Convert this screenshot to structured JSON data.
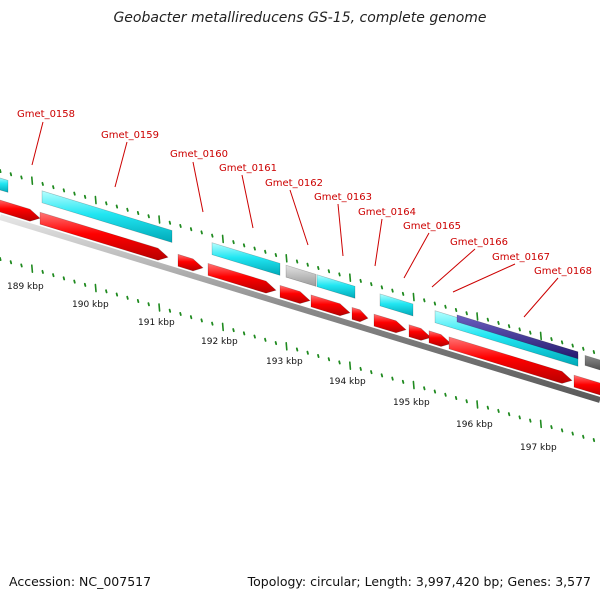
{
  "title": "Geobacter metallireducens GS-15, complete genome",
  "footer": {
    "accession": "Accession: NC_007517",
    "summary": "Topology: circular; Length: 3,997,420 bp; Genes: 3,577"
  },
  "colors": {
    "forward_cds": "#00ffff",
    "reverse_cds": "#ff0000",
    "other_feature": "#bfbfbf",
    "dark_feature": "#3a2d8c",
    "label_text": "#cc0000",
    "tick": "#1f8a1f",
    "backbone": "#808080"
  },
  "gene_labels": [
    "Gmet_0158",
    "Gmet_0159",
    "Gmet_0160",
    "Gmet_0161",
    "Gmet_0162",
    "Gmet_0163",
    "Gmet_0164",
    "Gmet_0165",
    "Gmet_0166",
    "Gmet_0167",
    "Gmet_0168"
  ],
  "kbp_labels": [
    "189 kbp",
    "190 kbp",
    "191 kbp",
    "192 kbp",
    "193 kbp",
    "194 kbp",
    "195 kbp",
    "196 kbp",
    "197 kbp"
  ]
}
